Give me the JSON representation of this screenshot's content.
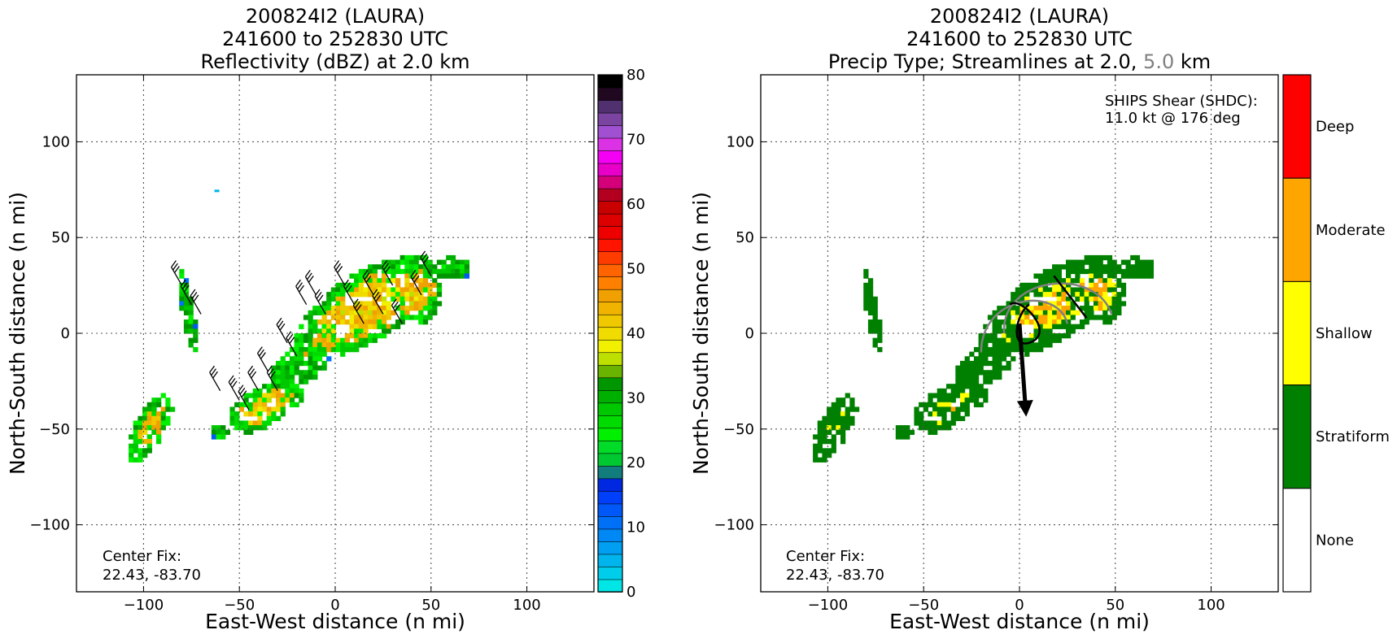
{
  "panels": [
    {
      "title_line1": "200824I2 (LAURA)",
      "title_line2": "241600 to 252830 UTC",
      "title_line3": "Reflectivity (dBZ) at 2.0 km",
      "xlabel": "East-West distance (n mi)",
      "ylabel": "North-South distance (n mi)",
      "center_fix_label": "Center Fix:",
      "center_fix_value": "22.43, -83.70",
      "colorbar_ticks": [
        "0",
        "10",
        "20",
        "30",
        "40",
        "50",
        "60",
        "70",
        "80"
      ],
      "colorbar_colors": [
        "#00e5e5",
        "#00cdea",
        "#00b5ee",
        "#009ff2",
        "#0088f4",
        "#0070f6",
        "#0058f8",
        "#0040fa",
        "#0028e0",
        "#127d7d",
        "#00c830",
        "#00dc28",
        "#00f000",
        "#00dc00",
        "#00c800",
        "#00b000",
        "#009600",
        "#6ab400",
        "#bee000",
        "#f0f000",
        "#f0dc00",
        "#f0c800",
        "#f0b400",
        "#f0a000",
        "#ff8000",
        "#ff6400",
        "#ff3c00",
        "#ff1400",
        "#ee0000",
        "#dc0000",
        "#c80000",
        "#b40020",
        "#d4007a",
        "#e800c8",
        "#f400f4",
        "#dc32e6",
        "#a050d0",
        "#7a44a0",
        "#50306e",
        "#200820",
        "#000000"
      ]
    },
    {
      "title_line1": "200824I2 (LAURA)",
      "title_line2": "241600 to 252830 UTC",
      "title_line3_a": "Precip Type; Streamlines at 2.0,",
      "title_line3_b": "5.0",
      "title_line3_c": "km",
      "xlabel": "East-West distance (n mi)",
      "ylabel": "North-South distance (n mi)",
      "center_fix_label": "Center Fix:",
      "center_fix_value": "22.43, -83.70",
      "shear_label": "SHIPS Shear (SHDC):",
      "shear_value": "11.0 kt @ 176 deg",
      "colorbar_categories": [
        {
          "label": "Deep",
          "color": "#ff0000"
        },
        {
          "label": "Moderate",
          "color": "#ffa500"
        },
        {
          "label": "Shallow",
          "color": "#ffff00"
        },
        {
          "label": "Stratiform",
          "color": "#008000"
        },
        {
          "label": "None",
          "color": "#ffffff"
        }
      ]
    }
  ],
  "chart_data": [
    {
      "type": "heatmap",
      "title": "200824I2 (LAURA) 241600 to 252830 UTC Reflectivity (dBZ) at 2.0 km",
      "xlabel": "East-West distance (n mi)",
      "ylabel": "North-South distance (n mi)",
      "xlim": [
        -135,
        135
      ],
      "ylim": [
        -135,
        135
      ],
      "xticks": [
        -100,
        -50,
        0,
        50,
        100
      ],
      "yticks": [
        -100,
        -50,
        0,
        50,
        100
      ],
      "grid": true,
      "colorbar_label_values": [
        0,
        10,
        20,
        30,
        40,
        50,
        60,
        70,
        80
      ]
    },
    {
      "type": "heatmap",
      "title": "200824I2 (LAURA) 241600 to 252830 UTC Precip Type; Streamlines at 2.0, 5.0 km",
      "xlabel": "East-West distance (n mi)",
      "ylabel": "North-South distance (n mi)",
      "xlim": [
        -135,
        135
      ],
      "ylim": [
        -135,
        135
      ],
      "xticks": [
        -100,
        -50,
        0,
        50,
        100
      ],
      "yticks": [
        -100,
        -50,
        0,
        50,
        100
      ],
      "grid": true,
      "categories": [
        "Deep",
        "Moderate",
        "Shallow",
        "Stratiform",
        "None"
      ],
      "shear_vector": {
        "speed_kt": 11.0,
        "direction_deg": 176
      }
    }
  ]
}
